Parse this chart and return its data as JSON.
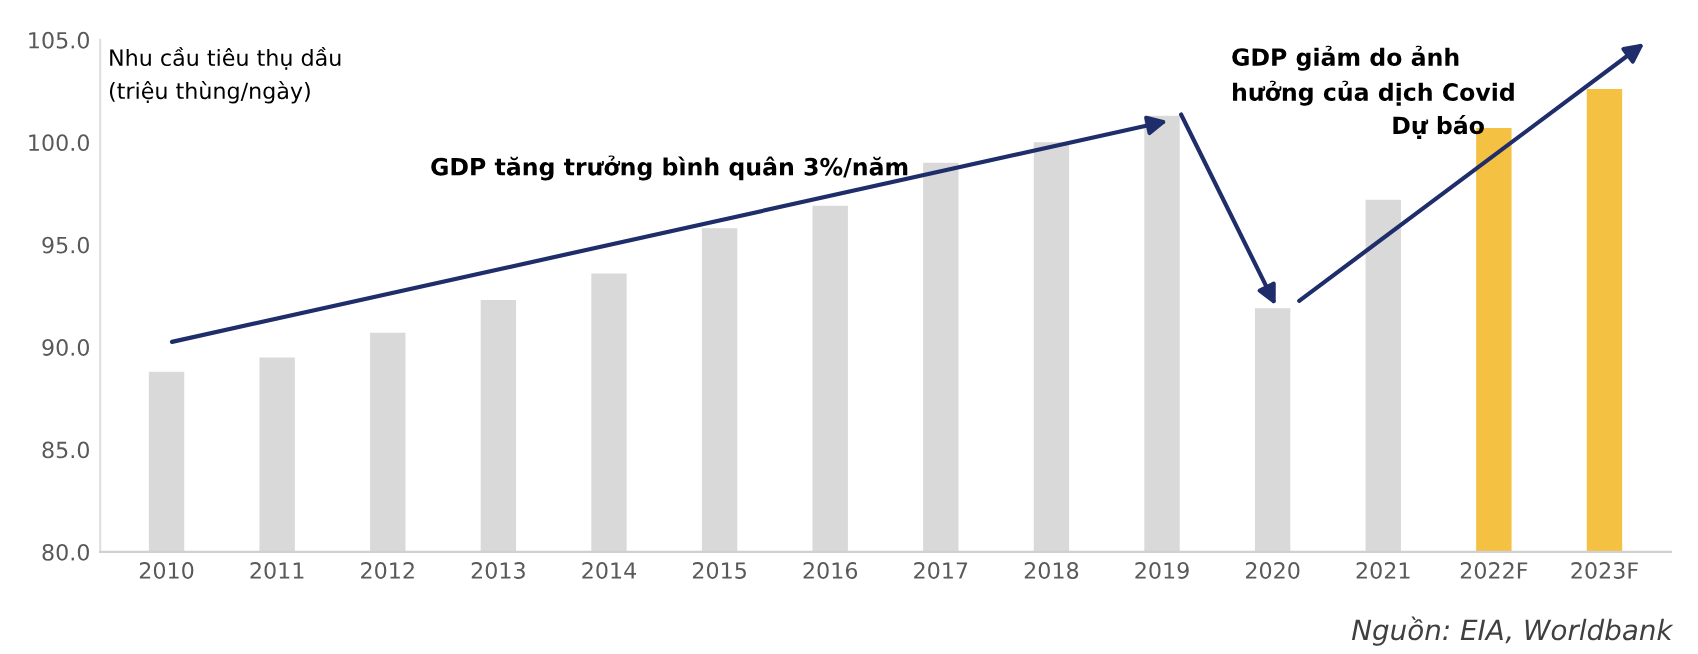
{
  "chart_data": {
    "type": "bar",
    "ylabel": "Nhu cầu tiêu thụ dầu\n(triệu thùng/ngày)",
    "categories": [
      "2010",
      "2011",
      "2012",
      "2013",
      "2014",
      "2015",
      "2016",
      "2017",
      "2018",
      "2019",
      "2020",
      "2021",
      "2022F",
      "2023F"
    ],
    "values": [
      88.8,
      89.5,
      90.7,
      92.3,
      93.6,
      95.8,
      96.9,
      99.0,
      100.0,
      101.3,
      91.9,
      97.2,
      100.7,
      102.6
    ],
    "colors": [
      "#d9d9d9",
      "#d9d9d9",
      "#d9d9d9",
      "#d9d9d9",
      "#d9d9d9",
      "#d9d9d9",
      "#d9d9d9",
      "#d9d9d9",
      "#d9d9d9",
      "#d9d9d9",
      "#d9d9d9",
      "#d9d9d9",
      "#f4c142",
      "#f4c142"
    ],
    "ylim": [
      80,
      105
    ],
    "yticks": [
      {
        "value": 80,
        "label": "80.0"
      },
      {
        "value": 85,
        "label": "85.0"
      },
      {
        "value": 90,
        "label": "90.0"
      },
      {
        "value": 95,
        "label": "95.0"
      },
      {
        "value": 100,
        "label": "100.0"
      },
      {
        "value": 105,
        "label": "105.0"
      }
    ],
    "grid": false,
    "annotations": [
      "GDP tăng trưởng bình quân 3%/năm",
      "GDP giảm do ảnh\nhưởng của dịch Covid",
      "Dự báo",
      "Nguồn: EIA, Worldbank"
    ]
  }
}
